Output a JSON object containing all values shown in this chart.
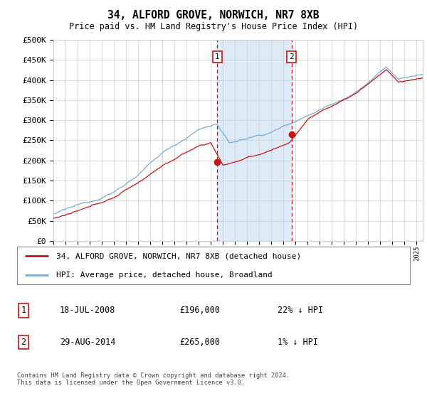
{
  "title": "34, ALFORD GROVE, NORWICH, NR7 8XB",
  "subtitle": "Price paid vs. HM Land Registry's House Price Index (HPI)",
  "ylabel_ticks": [
    "£0",
    "£50K",
    "£100K",
    "£150K",
    "£200K",
    "£250K",
    "£300K",
    "£350K",
    "£400K",
    "£450K",
    "£500K"
  ],
  "ytick_values": [
    0,
    50000,
    100000,
    150000,
    200000,
    250000,
    300000,
    350000,
    400000,
    450000,
    500000
  ],
  "xlim_left": 1995.0,
  "xlim_right": 2025.5,
  "ylim": [
    0,
    500000
  ],
  "hpi_color": "#7aaad4",
  "price_color": "#cc1111",
  "sale1_x": 2008.54,
  "sale1_y": 196000,
  "sale2_x": 2014.66,
  "sale2_y": 265000,
  "shade_color": "#ddeaf7",
  "dashed_color": "#cc1111",
  "legend_box_label1": "34, ALFORD GROVE, NORWICH, NR7 8XB (detached house)",
  "legend_box_label2": "HPI: Average price, detached house, Broadland",
  "table_row1_num": "1",
  "table_row1_date": "18-JUL-2008",
  "table_row1_price": "£196,000",
  "table_row1_hpi": "22% ↓ HPI",
  "table_row2_num": "2",
  "table_row2_date": "29-AUG-2014",
  "table_row2_price": "£265,000",
  "table_row2_hpi": "1% ↓ HPI",
  "footnote": "Contains HM Land Registry data © Crown copyright and database right 2024.\nThis data is licensed under the Open Government Licence v3.0.",
  "background_color": "#ffffff",
  "grid_color": "#cccccc"
}
